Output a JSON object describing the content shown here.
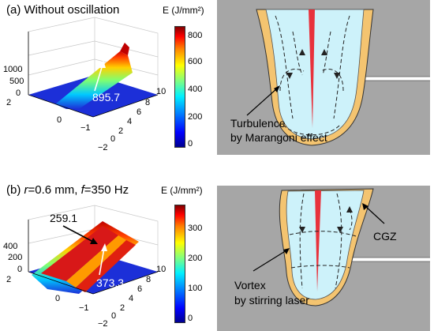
{
  "top": {
    "title_prefix": "(a) Without oscillation",
    "colorbar": {
      "title": "E (J/mm²)",
      "ticks": [
        "800",
        "600",
        "400",
        "200",
        "0"
      ],
      "range": [
        0,
        900
      ]
    },
    "surface": {
      "z_ticks": [
        "1000",
        "500",
        "0"
      ],
      "left_ticks": [
        "2",
        "0",
        "−1"
      ],
      "right_ticks": [
        "10",
        "8",
        "6",
        "4",
        "2",
        "0",
        "−2"
      ],
      "peak_label": "895.7"
    },
    "pool": {
      "label_line1": "Turbulence",
      "label_line2": "by Marangoni effect"
    }
  },
  "bottom": {
    "title_b": "(b) ",
    "title_r": "r",
    "title_mid": "=0.6 mm, ",
    "title_f": "f",
    "title_end": "=350 Hz",
    "colorbar": {
      "title": "E (J/mm²)",
      "ticks": [
        "300",
        "200",
        "100",
        "0"
      ],
      "range": [
        0,
        380
      ]
    },
    "surface": {
      "z_ticks": [
        "400",
        "200",
        "0"
      ],
      "left_ticks": [
        "2",
        "0",
        "−1"
      ],
      "right_ticks": [
        "10",
        "8",
        "6",
        "4",
        "2",
        "0",
        "−2"
      ],
      "peak_label_1": "259.1",
      "peak_label_2": "373.3"
    },
    "pool": {
      "cgz_label": "CGZ",
      "label_line1": "Vortex",
      "label_line2": "by stirring laser"
    }
  },
  "colors": {
    "plate": "#a6a6a6",
    "pool_core": "#cdf2fa",
    "pool_rim": "#f4c470",
    "keyhole": "#e8323c",
    "surface_base": "#1c2fd8"
  }
}
